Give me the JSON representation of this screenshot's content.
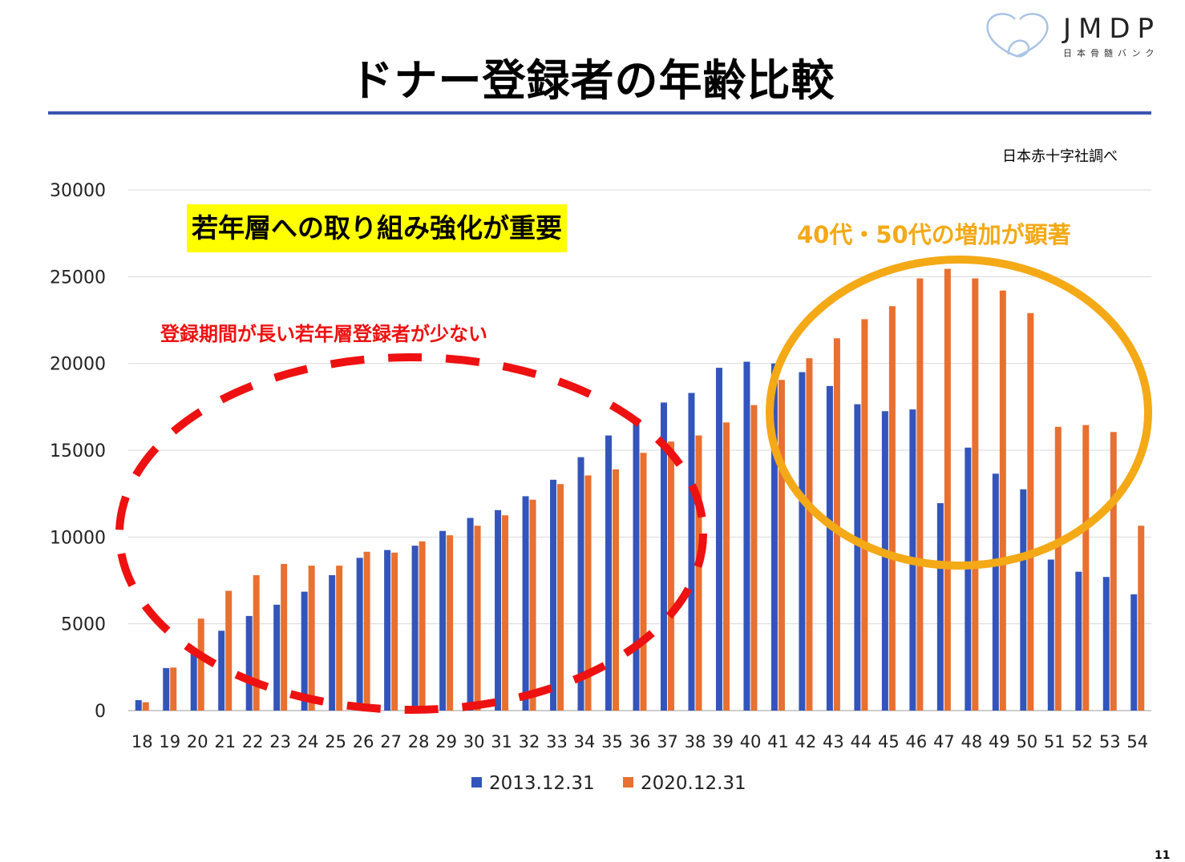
{
  "header": {
    "title": "ドナー登録者の年齢比較",
    "logo_text": "JMDP",
    "logo_sub": "日本骨髄バンク",
    "source": "日本赤十字社調べ"
  },
  "annotations": {
    "young_focus": "若年層への取り組み強化が重要",
    "increase_40_50": "40代・50代の増加が顕著",
    "few_young": "登録期間が長い若年層登録者が少ない"
  },
  "colors": {
    "series_2013": "#3355bb",
    "series_2020": "#e87030",
    "red_ellipse": "#ee1111",
    "orange_ellipse": "#f4a916",
    "highlight": "#ffff00",
    "title_rule": "#3a55b0"
  },
  "page_number": "11",
  "chart_data": {
    "type": "bar",
    "title": "",
    "xlabel": "",
    "ylabel": "",
    "ylim": [
      0,
      30000
    ],
    "yticks": [
      0,
      5000,
      10000,
      15000,
      20000,
      25000,
      30000
    ],
    "grid": true,
    "legend_position": "bottom",
    "categories": [
      "18",
      "19",
      "20",
      "21",
      "22",
      "23",
      "24",
      "25",
      "26",
      "27",
      "28",
      "29",
      "30",
      "31",
      "32",
      "33",
      "34",
      "35",
      "36",
      "37",
      "38",
      "39",
      "40",
      "41",
      "42",
      "43",
      "44",
      "45",
      "46",
      "47",
      "48",
      "49",
      "50",
      "51",
      "52",
      "53",
      "54"
    ],
    "series": [
      {
        "name": "2013.12.31",
        "color": "#3355bb",
        "values": [
          600,
          2450,
          3600,
          4600,
          5450,
          6100,
          6850,
          7800,
          8800,
          9250,
          9500,
          10350,
          11100,
          11550,
          12350,
          13300,
          14600,
          15850,
          16850,
          17750,
          18300,
          19750,
          20100,
          20000,
          19500,
          18700,
          17650,
          17250,
          17350,
          11950,
          15150,
          13650,
          12750,
          8700,
          8000,
          7700,
          6700
        ]
      },
      {
        "name": "2020.12.31",
        "color": "#e87030",
        "values": [
          480,
          2480,
          5300,
          6900,
          7800,
          8450,
          8350,
          8350,
          9150,
          9100,
          9750,
          10100,
          10650,
          11250,
          12150,
          13050,
          13550,
          13900,
          14850,
          15500,
          15850,
          16600,
          17600,
          19050,
          20300,
          21450,
          22550,
          23300,
          24900,
          25450,
          24900,
          24200,
          22900,
          16350,
          16450,
          16050,
          10650
        ]
      }
    ]
  }
}
